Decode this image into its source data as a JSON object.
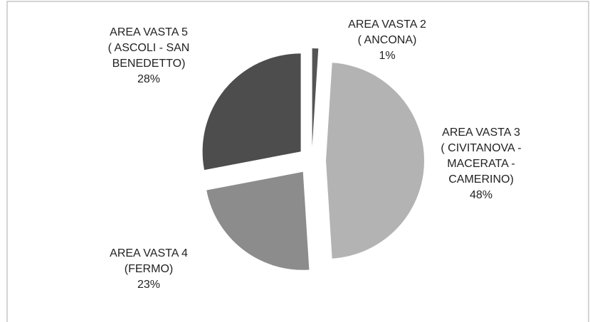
{
  "chart_data": {
    "type": "pie",
    "categories": [
      [
        "AREA VASTA 2",
        "( ANCONA)"
      ],
      [
        "AREA VASTA 3",
        "( CIVITANOVA -",
        "MACERATA -",
        "CAMERINO)"
      ],
      [
        "AREA VASTA 4",
        "(FERMO)"
      ],
      [
        "AREA VASTA 5",
        "( ASCOLI - SAN",
        "BENEDETTO)"
      ]
    ],
    "values": [
      1,
      48,
      23,
      28
    ],
    "value_labels": [
      "1%",
      "48%",
      "23%",
      "28%"
    ],
    "colors": [
      "#555555",
      "#b3b3b3",
      "#8c8c8c",
      "#4d4d4d"
    ]
  }
}
